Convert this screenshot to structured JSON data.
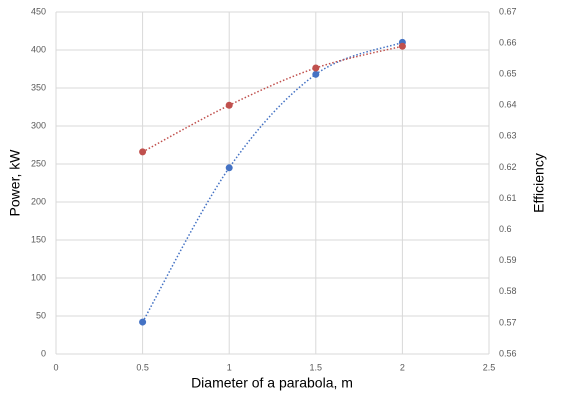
{
  "chart_data": {
    "type": "scatter",
    "x_label": "Diameter of a parabola, m",
    "y_label": "Power, kW",
    "y2_label": "Efficiency",
    "x": [
      0.5,
      1,
      1.5,
      2
    ],
    "series": [
      {
        "color": "#4472c4",
        "values": [
          42,
          245,
          368,
          410
        ]
      },
      {
        "color": "#c0504d",
        "axis": "y2",
        "values": [
          0.625,
          0.64,
          0.652,
          0.659
        ]
      }
    ],
    "xlim": [
      0,
      2.5
    ],
    "xticks": [
      0,
      0.5,
      1,
      1.5,
      2,
      2.5
    ],
    "ylim": [
      0,
      450
    ],
    "yticks": [
      0,
      50,
      100,
      150,
      200,
      250,
      300,
      350,
      400,
      450
    ],
    "y2lim": [
      0.56,
      0.67
    ],
    "y2ticks": [
      0.56,
      0.57,
      0.58,
      0.59,
      0.6,
      0.61,
      0.62,
      0.63,
      0.64,
      0.65,
      0.66,
      0.67
    ],
    "grid": true,
    "line_style": "dotted"
  }
}
